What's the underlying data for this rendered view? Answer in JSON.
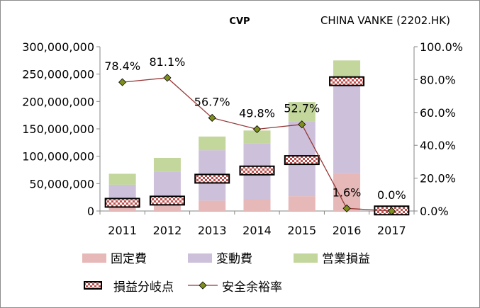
{
  "chart_data": {
    "type": "bar",
    "title": "CVP",
    "subtitle": "CHINA VANKE (2202.HK)",
    "categories": [
      "2011",
      "2012",
      "2013",
      "2014",
      "2015",
      "2016",
      "2017"
    ],
    "series": [
      {
        "name": "固定費",
        "kind": "stacked-bar",
        "axis": "left",
        "color": "#e6b8b7",
        "values": [
          8000000,
          9000000,
          19000000,
          22000000,
          27000000,
          69000000,
          2000000
        ]
      },
      {
        "name": "変動費",
        "kind": "stacked-bar",
        "axis": "left",
        "color": "#ccc0da",
        "values": [
          40000000,
          63000000,
          92000000,
          101000000,
          136000000,
          176000000,
          1000000
        ]
      },
      {
        "name": "営業損益",
        "kind": "stacked-bar",
        "axis": "left",
        "color": "#c3d69b",
        "values": [
          20000000,
          25000000,
          25000000,
          24000000,
          36000000,
          30000000,
          0
        ]
      },
      {
        "name": "損益分岐点",
        "kind": "marker",
        "axis": "left",
        "color": "#c0504d",
        "values": [
          15000000,
          19000000,
          59000000,
          74000000,
          93000000,
          237000000,
          1000000
        ]
      },
      {
        "name": "安全余裕率",
        "kind": "line",
        "axis": "right",
        "color": "#953735",
        "marker_color": "#7f8f1e",
        "values": [
          78.4,
          81.1,
          56.7,
          49.8,
          52.7,
          1.6,
          0.0
        ],
        "labels": [
          "78.4%",
          "81.1%",
          "56.7%",
          "49.8%",
          "52.7%",
          "1.6%",
          "0.0%"
        ]
      }
    ],
    "y_left": {
      "min": 0,
      "max": 300000000,
      "step": 50000000,
      "ticks": [
        "0",
        "50,000,000",
        "100,000,000",
        "150,000,000",
        "200,000,000",
        "250,000,000",
        "300,000,000"
      ]
    },
    "y_right": {
      "min": 0,
      "max": 100,
      "step": 20,
      "ticks": [
        "0.0%",
        "20.0%",
        "40.0%",
        "60.0%",
        "80.0%",
        "100.0%"
      ]
    },
    "grid": false,
    "legend_position": "bottom"
  }
}
